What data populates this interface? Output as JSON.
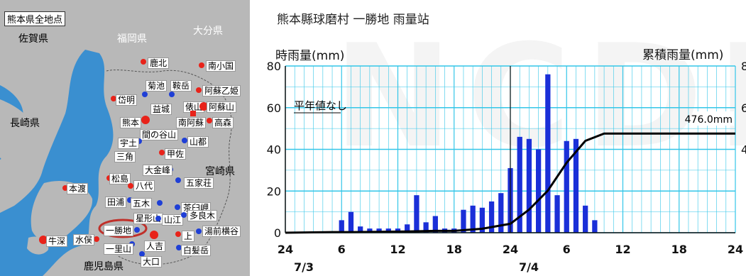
{
  "map": {
    "title": "熊本県全地点",
    "regions": [
      {
        "text": "佐賀県",
        "light": false
      },
      {
        "text": "福岡県",
        "light": true
      },
      {
        "text": "大分県",
        "light": true
      },
      {
        "text": "長崎県",
        "light": false
      },
      {
        "text": "宮崎県",
        "light": false
      },
      {
        "text": "鹿児島県",
        "light": false
      }
    ],
    "stations": [
      "鹿北",
      "南小国",
      "菊池",
      "鞍岳",
      "阿蘇乙姫",
      "岱明",
      "益城",
      "俵山",
      "阿蘇山",
      "熊本",
      "南阿蘇",
      "高森",
      "間の谷山",
      "宇土",
      "山都",
      "甲佐",
      "三角",
      "大金峰",
      "松島",
      "八代",
      "五家荘",
      "本渡",
      "田浦",
      "五木",
      "茶臼岬",
      "星形山",
      "山江",
      "多良木",
      "牛深",
      "水俣",
      "一勝地",
      "上",
      "湯前横谷",
      "一里山",
      "人吉",
      "白髪岳",
      "大口"
    ],
    "colors": {
      "sea": "#3a8fd0",
      "land": "#b8b8b8",
      "red": "#e8231a",
      "blue": "#1f3fd6",
      "green": "#2ea82e",
      "highlight": "#c0302a"
    }
  },
  "chart": {
    "title": "熊本縣球磨村 一勝地 雨量站",
    "ylabel_left": "時雨量(mm)",
    "ylabel_right": "累積雨量(mm)",
    "annotation_normal": "平年値なし",
    "annotation_total": "476.0mm",
    "date_labels": [
      {
        "text": "7/3",
        "hour": 0
      },
      {
        "text": "7/4",
        "hour": 24
      }
    ]
  },
  "chart_data": {
    "type": "bar",
    "x_unit": "hour from 7/3 00:00",
    "xlim": [
      0,
      48
    ],
    "x_ticks": [
      {
        "hour": 0,
        "label": "24"
      },
      {
        "hour": 6,
        "label": "6"
      },
      {
        "hour": 12,
        "label": "12"
      },
      {
        "hour": 18,
        "label": "18"
      },
      {
        "hour": 24,
        "label": "24"
      },
      {
        "hour": 30,
        "label": "6"
      },
      {
        "hour": 36,
        "label": "12"
      },
      {
        "hour": 42,
        "label": "18"
      },
      {
        "hour": 48,
        "label": "24"
      }
    ],
    "ylim": [
      0,
      80
    ],
    "y_ticks": [
      0,
      20,
      40,
      60,
      80
    ],
    "y2_visible_tick_fragments": [
      "8",
      "6",
      "4"
    ],
    "series": [
      {
        "type": "bar",
        "hours": [
          6,
          7,
          8,
          9,
          10,
          11,
          12,
          13,
          14,
          15,
          16,
          17,
          18,
          19,
          20,
          21,
          22,
          23,
          24,
          25,
          26,
          27,
          28,
          29,
          30,
          31,
          32,
          33,
          34
        ],
        "values": [
          6,
          10,
          3,
          2,
          2,
          2,
          2,
          4,
          18,
          5,
          8,
          2,
          2,
          11,
          13,
          12,
          15,
          19,
          31,
          46,
          45,
          40,
          76,
          18,
          44,
          45,
          13,
          6,
          0
        ]
      },
      {
        "type": "line",
        "axis": "right",
        "hours": [
          0,
          5,
          7,
          10,
          13,
          16,
          18,
          21,
          24,
          26,
          28,
          30,
          32,
          34,
          48
        ],
        "values": [
          0,
          3,
          3,
          4,
          6,
          9,
          9,
          19,
          43,
          111,
          202,
          336,
          441,
          476,
          476
        ]
      }
    ],
    "colors": {
      "bar": "#1a2fd8",
      "line": "#000000",
      "grid": "#33c6e8"
    }
  }
}
